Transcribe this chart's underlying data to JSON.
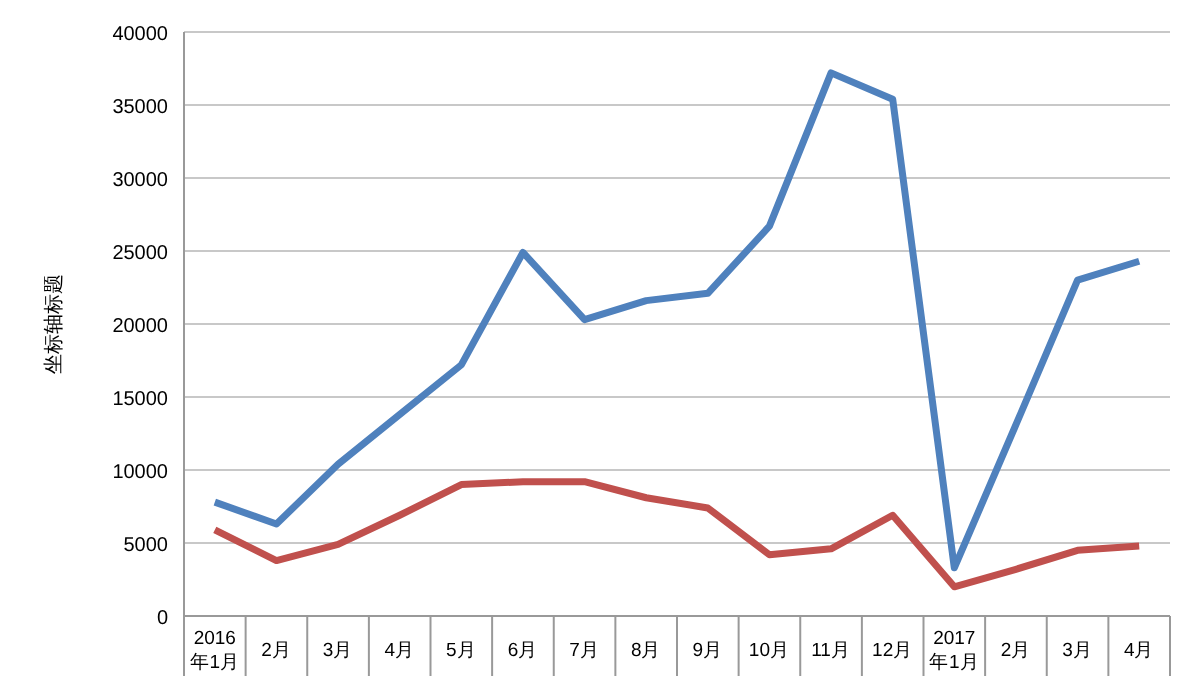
{
  "chart_data": {
    "type": "line",
    "ylabel": "坐标轴标题",
    "categories": [
      "2016\n年1月",
      "2月",
      "3月",
      "4月",
      "5月",
      "6月",
      "7月",
      "8月",
      "9月",
      "10月",
      "11月",
      "12月",
      "2017\n年1月",
      "2月",
      "3月",
      "4月"
    ],
    "series": [
      {
        "color": "#4f81bd",
        "values": [
          7800,
          6300,
          10400,
          13800,
          17200,
          24900,
          20300,
          21600,
          22100,
          26700,
          37200,
          35400,
          3300,
          13100,
          23000,
          24300
        ]
      },
      {
        "color": "#c0504d",
        "values": [
          5900,
          3800,
          4900,
          6900,
          9000,
          9200,
          9200,
          8100,
          7400,
          4200,
          4600,
          6900,
          2000,
          3200,
          4500,
          4800
        ]
      }
    ],
    "ylim": [
      0,
      40000
    ],
    "yticks": [
      0,
      5000,
      10000,
      15000,
      20000,
      25000,
      30000,
      35000,
      40000
    ],
    "grid": "y",
    "marker": "none",
    "line_style": "solid"
  }
}
